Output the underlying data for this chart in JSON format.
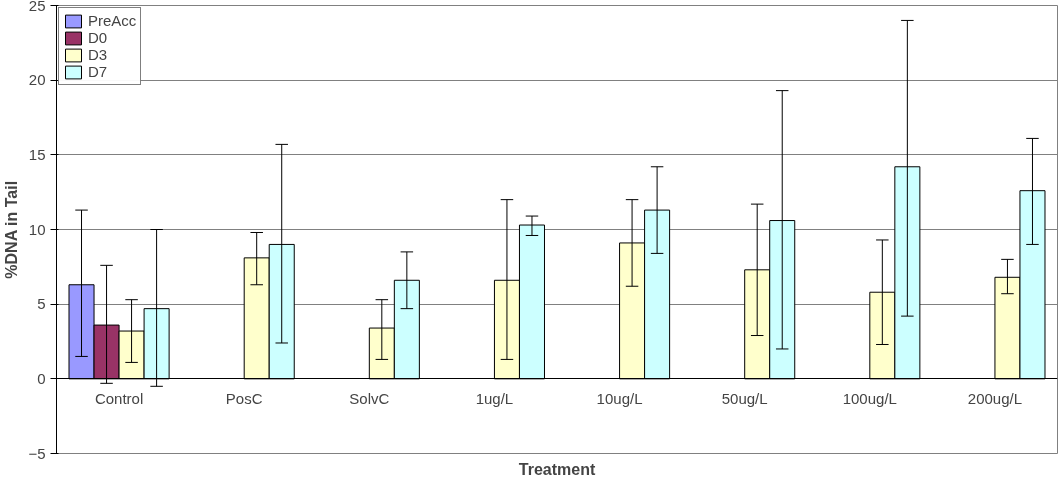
{
  "chart_data": {
    "type": "bar",
    "xlabel": "Treatment",
    "ylabel": "%DNA in Tail",
    "categories": [
      "Control",
      "PosC",
      "SolvC",
      "1ug/L",
      "10ug/L",
      "50ug/L",
      "100ug/L",
      "200ug/L"
    ],
    "series": [
      {
        "name": "PreAcc",
        "color": "#9999ff",
        "values": [
          6.3,
          null,
          null,
          null,
          null,
          null,
          null,
          null
        ],
        "errors": [
          [
            1.5,
            11.3
          ],
          null,
          null,
          null,
          null,
          null,
          null,
          null
        ]
      },
      {
        "name": "D0",
        "color": "#993366",
        "values": [
          3.6,
          null,
          null,
          null,
          null,
          null,
          null,
          null
        ],
        "errors": [
          [
            -0.3,
            7.6
          ],
          null,
          null,
          null,
          null,
          null,
          null,
          null
        ]
      },
      {
        "name": "D3",
        "color": "#ffffcc",
        "values": [
          3.2,
          8.1,
          3.4,
          6.6,
          9.1,
          7.3,
          5.8,
          6.8
        ],
        "errors": [
          [
            1.1,
            5.3
          ],
          [
            6.3,
            9.8
          ],
          [
            1.3,
            5.3
          ],
          [
            1.3,
            12.0
          ],
          [
            6.2,
            12.0
          ],
          [
            2.9,
            11.7
          ],
          [
            2.3,
            9.3
          ],
          [
            5.7,
            8.0
          ]
        ]
      },
      {
        "name": "D7",
        "color": "#ccffff",
        "values": [
          4.7,
          9.0,
          6.6,
          10.3,
          11.3,
          10.6,
          14.2,
          12.6
        ],
        "errors": [
          [
            -0.5,
            10.0
          ],
          [
            2.4,
            15.7
          ],
          [
            4.7,
            8.5
          ],
          [
            9.6,
            10.9
          ],
          [
            8.4,
            14.2
          ],
          [
            2.0,
            19.3
          ],
          [
            4.2,
            24.0
          ],
          [
            9.0,
            16.1
          ]
        ]
      }
    ],
    "ylim": [
      -5,
      25
    ],
    "yticks": [
      -5,
      0,
      5,
      10,
      15,
      20,
      25
    ],
    "grid": "y",
    "legend": "top left"
  }
}
